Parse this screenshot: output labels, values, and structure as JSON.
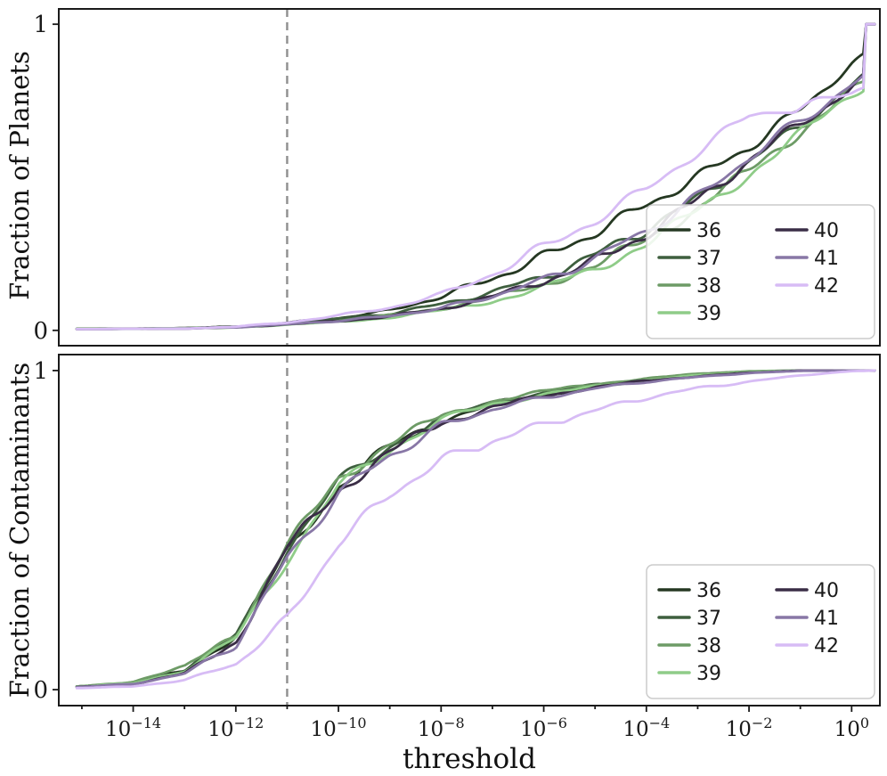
{
  "xlabel": "threshold",
  "colors": {
    "36": "#253822",
    "37": "#3e5f3e",
    "38": "#6d9b66",
    "39": "#8fcc88",
    "40": "#3a2d46",
    "41": "#8877a6",
    "42": "#d7bcf5",
    "dashed_line": "#8f8f8f",
    "axis": "#1a1a1a",
    "legend_border": "#cccccc"
  },
  "chart_data": [
    {
      "type": "line",
      "panel": "top",
      "ylabel": "Fraction of Planets",
      "ylim": [
        0,
        1
      ],
      "yticks": [
        0,
        1
      ],
      "xlim_log10": [
        -15.45,
        0.55
      ],
      "xticks_log10": [
        -14,
        -12,
        -10,
        -8,
        -6,
        -4,
        -2,
        0
      ],
      "vline_log10": -11,
      "x_log10": [
        -15.1,
        -14,
        -13,
        -12,
        -11,
        -10,
        -9,
        -8,
        -7,
        -6,
        -5,
        -4,
        -3,
        -2,
        -1,
        0,
        0.25,
        0.28,
        0.45
      ],
      "series": [
        {
          "name": "36",
          "color": "#253822",
          "values": [
            0.005,
            0.005,
            0.008,
            0.012,
            0.025,
            0.04,
            0.065,
            0.11,
            0.17,
            0.24,
            0.32,
            0.41,
            0.5,
            0.6,
            0.72,
            0.87,
            0.9,
            1.0,
            1.0
          ]
        },
        {
          "name": "37",
          "color": "#3e5f3e",
          "values": [
            0.005,
            0.005,
            0.007,
            0.011,
            0.022,
            0.037,
            0.055,
            0.085,
            0.125,
            0.175,
            0.245,
            0.33,
            0.43,
            0.55,
            0.67,
            0.8,
            0.83,
            1.0,
            1.0
          ]
        },
        {
          "name": "38",
          "color": "#6d9b66",
          "values": [
            0.004,
            0.005,
            0.007,
            0.01,
            0.02,
            0.032,
            0.048,
            0.072,
            0.105,
            0.15,
            0.21,
            0.295,
            0.4,
            0.52,
            0.65,
            0.78,
            0.81,
            1.0,
            1.0
          ]
        },
        {
          "name": "39",
          "color": "#8fcc88",
          "values": [
            0.004,
            0.005,
            0.006,
            0.01,
            0.018,
            0.028,
            0.042,
            0.065,
            0.095,
            0.14,
            0.2,
            0.285,
            0.39,
            0.51,
            0.64,
            0.77,
            0.8,
            1.0,
            1.0
          ]
        },
        {
          "name": "40",
          "color": "#3a2d46",
          "values": [
            0.004,
            0.005,
            0.006,
            0.01,
            0.02,
            0.03,
            0.046,
            0.07,
            0.11,
            0.16,
            0.225,
            0.315,
            0.425,
            0.555,
            0.675,
            0.795,
            0.825,
            1.0,
            1.0
          ]
        },
        {
          "name": "41",
          "color": "#8877a6",
          "values": [
            0.004,
            0.005,
            0.006,
            0.01,
            0.02,
            0.031,
            0.047,
            0.072,
            0.112,
            0.165,
            0.235,
            0.325,
            0.435,
            0.565,
            0.685,
            0.8,
            0.83,
            1.0,
            1.0
          ]
        },
        {
          "name": "42",
          "color": "#d7bcf5",
          "values": [
            0.004,
            0.005,
            0.006,
            0.012,
            0.026,
            0.048,
            0.075,
            0.115,
            0.185,
            0.27,
            0.36,
            0.46,
            0.585,
            0.7,
            0.73,
            0.77,
            0.795,
            1.0,
            1.0
          ]
        }
      ],
      "legend": [
        "36",
        "37",
        "38",
        "39",
        "40",
        "41",
        "42"
      ]
    },
    {
      "type": "line",
      "panel": "bottom",
      "ylabel": "Fraction of Contaminants",
      "ylim": [
        0,
        1
      ],
      "yticks": [
        0,
        1
      ],
      "xlim_log10": [
        -15.45,
        0.55
      ],
      "xticks_log10": [
        -14,
        -12,
        -10,
        -8,
        -6,
        -4,
        -2,
        0
      ],
      "vline_log10": -11,
      "x_log10": [
        -15.1,
        -14,
        -13,
        -12,
        -11,
        -10,
        -9,
        -8,
        -7,
        -6,
        -5,
        -4,
        -3,
        -2,
        -1,
        0,
        0.45
      ],
      "series": [
        {
          "name": "36",
          "color": "#253822",
          "values": [
            0.01,
            0.02,
            0.06,
            0.17,
            0.43,
            0.64,
            0.76,
            0.845,
            0.895,
            0.925,
            0.95,
            0.97,
            0.985,
            0.995,
            1.0,
            1.0,
            1.0
          ]
        },
        {
          "name": "37",
          "color": "#3e5f3e",
          "values": [
            0.01,
            0.02,
            0.06,
            0.17,
            0.44,
            0.65,
            0.765,
            0.85,
            0.9,
            0.93,
            0.955,
            0.972,
            0.988,
            0.997,
            1.0,
            1.0,
            1.0
          ]
        },
        {
          "name": "38",
          "color": "#6d9b66",
          "values": [
            0.01,
            0.025,
            0.07,
            0.18,
            0.45,
            0.66,
            0.775,
            0.855,
            0.905,
            0.935,
            0.958,
            0.975,
            0.99,
            0.998,
            1.0,
            1.0,
            1.0
          ]
        },
        {
          "name": "39",
          "color": "#8fcc88",
          "values": [
            0.01,
            0.02,
            0.06,
            0.16,
            0.41,
            0.635,
            0.755,
            0.845,
            0.895,
            0.925,
            0.95,
            0.97,
            0.985,
            0.996,
            1.0,
            1.0,
            1.0
          ]
        },
        {
          "name": "40",
          "color": "#3a2d46",
          "values": [
            0.008,
            0.018,
            0.05,
            0.15,
            0.445,
            0.625,
            0.745,
            0.835,
            0.885,
            0.92,
            0.948,
            0.968,
            0.982,
            0.993,
            1.0,
            1.0,
            1.0
          ]
        },
        {
          "name": "41",
          "color": "#8877a6",
          "values": [
            0.008,
            0.018,
            0.05,
            0.14,
            0.41,
            0.615,
            0.735,
            0.825,
            0.88,
            0.915,
            0.944,
            0.965,
            0.98,
            0.992,
            0.999,
            1.0,
            1.0
          ]
        },
        {
          "name": "42",
          "color": "#d7bcf5",
          "values": [
            0.005,
            0.01,
            0.03,
            0.08,
            0.22,
            0.46,
            0.615,
            0.715,
            0.78,
            0.83,
            0.875,
            0.915,
            0.945,
            0.965,
            0.985,
            0.998,
            1.0
          ]
        }
      ],
      "legend": [
        "36",
        "37",
        "38",
        "39",
        "40",
        "41",
        "42"
      ]
    }
  ]
}
